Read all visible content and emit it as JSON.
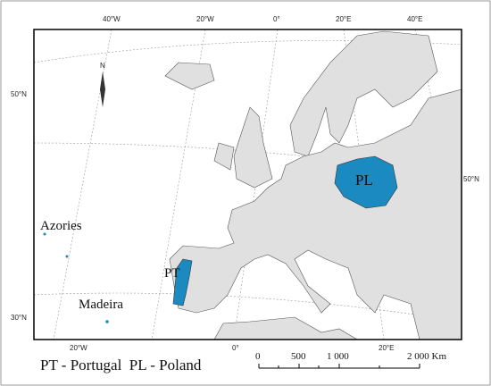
{
  "graticule": {
    "top": [
      "40°W",
      "20°W",
      "0°",
      "20°E",
      "40°E"
    ],
    "left": [
      "50°N",
      "30°N"
    ],
    "right": [
      "50°N"
    ],
    "bottom": [
      "20°W",
      "0°",
      "20°E"
    ]
  },
  "labels": {
    "poland": "PL",
    "portugal": "PT",
    "azores": "Azories",
    "madeira": "Madeira",
    "north": "N"
  },
  "legend": "PT - Portugal  PL - Poland",
  "scale_bar": [
    "0",
    "500",
    "1 000",
    "2 000 Km"
  ]
}
